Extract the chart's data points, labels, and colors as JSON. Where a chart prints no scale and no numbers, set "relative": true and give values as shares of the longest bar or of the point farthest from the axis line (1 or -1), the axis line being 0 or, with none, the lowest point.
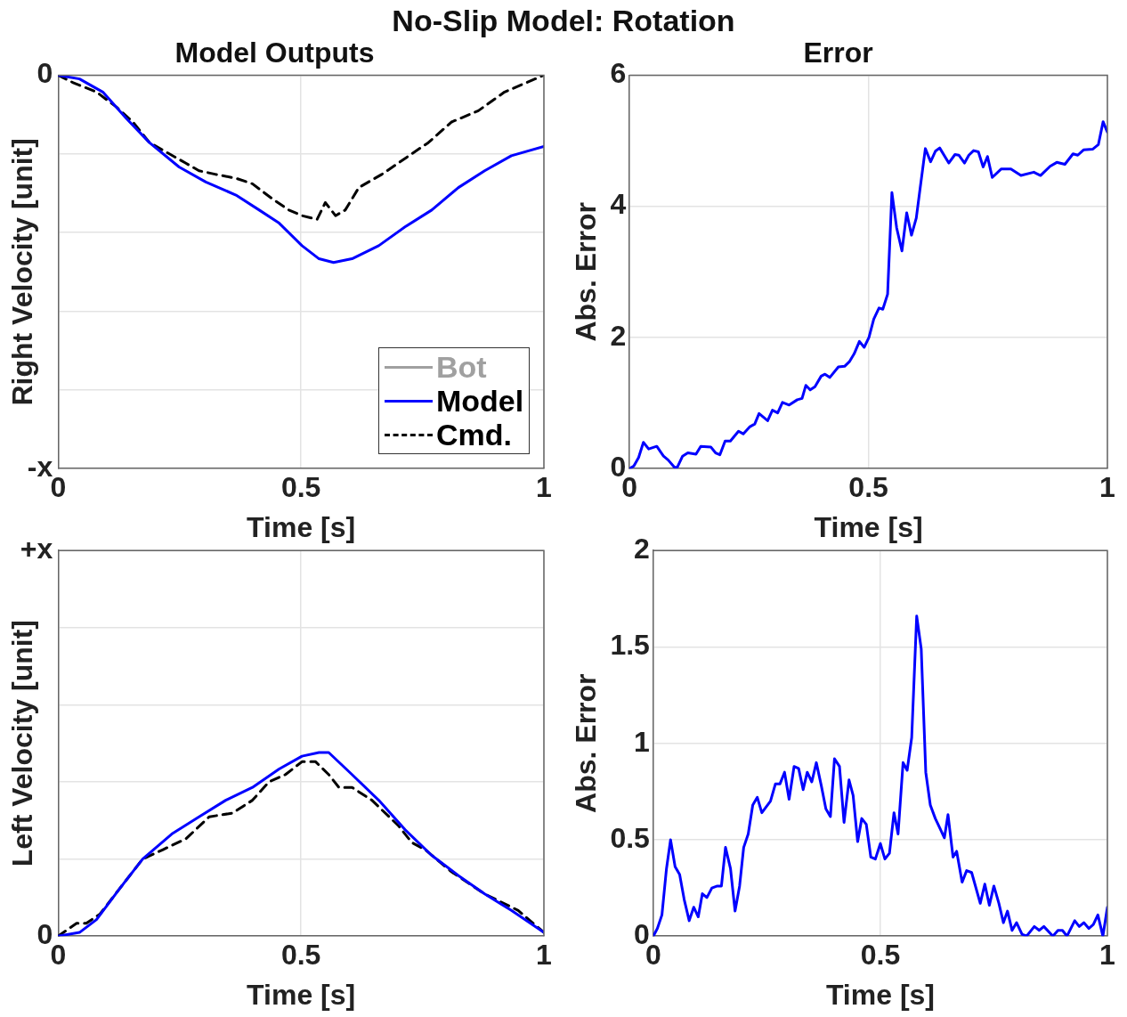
{
  "chart_data": [
    {
      "type": "line",
      "title": "No-Slip Model: Rotation",
      "subtitle": "Model Outputs",
      "annotations": [
        "0",
        "-x"
      ],
      "xlabel": "Time [s]",
      "ylabel": "Right Velocity [unit]",
      "xlim": [
        0,
        1
      ],
      "xticks": [
        0,
        0.5,
        1
      ],
      "relative": true,
      "grid": true,
      "legend": "bottom right",
      "marker": "none",
      "series": [
        {
          "name": "Bot",
          "color": "#a0a0a0",
          "line_style": "solid"
        },
        {
          "name": "Model",
          "color": "#0000ff",
          "line_style": "solid",
          "x": [
            0,
            0.044,
            0.092,
            0.14,
            0.188,
            0.249,
            0.304,
            0.366,
            0.414,
            0.455,
            0.502,
            0.537,
            0.567,
            0.605,
            0.66,
            0.714,
            0.769,
            0.824,
            0.878,
            0.933,
            1
          ],
          "values": [
            0,
            -0.02,
            -0.09,
            -0.23,
            -0.36,
            -0.49,
            -0.57,
            -0.64,
            -0.72,
            -0.79,
            -0.91,
            -0.98,
            -1,
            -0.98,
            -0.91,
            -0.81,
            -0.72,
            -0.6,
            -0.51,
            -0.43,
            -0.38
          ]
        },
        {
          "name": "Cmd.",
          "color": "#000000",
          "line_style": "dashed",
          "x": [
            0,
            0.031,
            0.079,
            0.12,
            0.154,
            0.188,
            0.229,
            0.263,
            0.29,
            0.325,
            0.366,
            0.4,
            0.441,
            0.475,
            0.502,
            0.533,
            0.55,
            0.571,
            0.591,
            0.619,
            0.666,
            0.728,
            0.762,
            0.81,
            0.865,
            0.919,
            1
          ],
          "values": [
            0,
            -0.04,
            -0.09,
            -0.17,
            -0.25,
            -0.36,
            -0.42,
            -0.47,
            -0.51,
            -0.53,
            -0.55,
            -0.58,
            -0.66,
            -0.72,
            -0.75,
            -0.77,
            -0.68,
            -0.75,
            -0.72,
            -0.6,
            -0.53,
            -0.42,
            -0.36,
            -0.25,
            -0.19,
            -0.09,
            0
          ]
        }
      ]
    },
    {
      "type": "line",
      "title": "Error",
      "xlabel": "Time [s]",
      "ylabel": "Abs. Error",
      "xlim": [
        0,
        1
      ],
      "xticks": [
        0,
        0.5,
        1
      ],
      "ylim": [
        0,
        6
      ],
      "yticks": [
        0,
        2,
        4,
        6
      ],
      "grid": true,
      "marker": "none",
      "series": [
        {
          "color": "#0000ff",
          "line_style": "solid",
          "x": [
            0,
            0.009,
            0.019,
            0.029,
            0.04,
            0.057,
            0.071,
            0.081,
            0.094,
            0.1,
            0.111,
            0.122,
            0.139,
            0.149,
            0.17,
            0.18,
            0.189,
            0.2,
            0.211,
            0.228,
            0.238,
            0.252,
            0.262,
            0.271,
            0.289,
            0.299,
            0.31,
            0.32,
            0.334,
            0.351,
            0.361,
            0.369,
            0.378,
            0.388,
            0.401,
            0.409,
            0.419,
            0.437,
            0.45,
            0.46,
            0.47,
            0.481,
            0.491,
            0.501,
            0.511,
            0.522,
            0.53,
            0.54,
            0.549,
            0.559,
            0.57,
            0.58,
            0.59,
            0.6,
            0.608,
            0.619,
            0.63,
            0.64,
            0.649,
            0.668,
            0.681,
            0.689,
            0.701,
            0.71,
            0.72,
            0.73,
            0.74,
            0.749,
            0.759,
            0.778,
            0.798,
            0.819,
            0.846,
            0.86,
            0.88,
            0.894,
            0.911,
            0.928,
            0.938,
            0.95,
            0.969,
            0.981,
            0.991,
            1
          ],
          "values": [
            0,
            0.04,
            0.17,
            0.4,
            0.3,
            0.34,
            0.19,
            0.13,
            0.02,
            0.02,
            0.19,
            0.24,
            0.22,
            0.34,
            0.33,
            0.24,
            0.21,
            0.42,
            0.42,
            0.57,
            0.53,
            0.64,
            0.68,
            0.84,
            0.73,
            0.89,
            0.85,
            1.01,
            0.97,
            1.05,
            1.07,
            1.27,
            1.2,
            1.25,
            1.41,
            1.44,
            1.39,
            1.55,
            1.56,
            1.63,
            1.75,
            1.94,
            1.85,
            2,
            2.28,
            2.45,
            2.43,
            2.66,
            4.21,
            3.67,
            3.32,
            3.9,
            3.56,
            3.82,
            4.27,
            4.88,
            4.68,
            4.84,
            4.89,
            4.66,
            4.79,
            4.78,
            4.66,
            4.78,
            4.85,
            4.83,
            4.6,
            4.76,
            4.44,
            4.57,
            4.57,
            4.47,
            4.52,
            4.47,
            4.61,
            4.67,
            4.64,
            4.8,
            4.78,
            4.86,
            4.87,
            4.94,
            5.29,
            5.13
          ]
        }
      ]
    },
    {
      "type": "line",
      "annotations": [
        "+x",
        "0"
      ],
      "xlabel": "Time [s]",
      "ylabel": "Left Velocity [unit]",
      "xlim": [
        0,
        1
      ],
      "xticks": [
        0,
        0.5,
        1
      ],
      "relative": true,
      "grid": true,
      "marker": "none",
      "series": [
        {
          "color": "#0000ff",
          "line_style": "solid",
          "x": [
            0,
            0.044,
            0.079,
            0.127,
            0.174,
            0.236,
            0.29,
            0.345,
            0.4,
            0.455,
            0.502,
            0.537,
            0.557,
            0.605,
            0.66,
            0.714,
            0.769,
            0.824,
            0.878,
            0.933,
            1
          ],
          "values": [
            0,
            0.02,
            0.09,
            0.26,
            0.42,
            0.56,
            0.65,
            0.74,
            0.81,
            0.91,
            0.98,
            1,
            1,
            0.88,
            0.74,
            0.58,
            0.44,
            0.33,
            0.23,
            0.14,
            0.02
          ]
        },
        {
          "color": "#000000",
          "line_style": "dashed",
          "x": [
            0,
            0.038,
            0.058,
            0.086,
            0.127,
            0.174,
            0.215,
            0.263,
            0.311,
            0.359,
            0.4,
            0.434,
            0.468,
            0.502,
            0.53,
            0.557,
            0.578,
            0.605,
            0.646,
            0.701,
            0.728,
            0.756,
            0.81,
            0.878,
            0.947,
            1
          ],
          "values": [
            0,
            0.07,
            0.07,
            0.12,
            0.26,
            0.42,
            0.47,
            0.53,
            0.65,
            0.67,
            0.74,
            0.84,
            0.88,
            0.95,
            0.95,
            0.88,
            0.81,
            0.81,
            0.74,
            0.6,
            0.51,
            0.47,
            0.35,
            0.23,
            0.14,
            0.02
          ]
        }
      ]
    },
    {
      "type": "line",
      "xlabel": "Time [s]",
      "ylabel": "Abs. Error",
      "xlim": [
        0,
        1
      ],
      "xticks": [
        0,
        0.5,
        1
      ],
      "ylim": [
        0,
        2
      ],
      "yticks": [
        0,
        0.5,
        1,
        1.5,
        2
      ],
      "grid": true,
      "marker": "none",
      "series": [
        {
          "color": "#0000ff",
          "line_style": "solid",
          "x": [
            0,
            0.009,
            0.019,
            0.029,
            0.038,
            0.048,
            0.058,
            0.068,
            0.079,
            0.089,
            0.099,
            0.108,
            0.118,
            0.129,
            0.141,
            0.15,
            0.159,
            0.17,
            0.18,
            0.19,
            0.199,
            0.209,
            0.219,
            0.229,
            0.239,
            0.258,
            0.269,
            0.279,
            0.289,
            0.299,
            0.31,
            0.32,
            0.33,
            0.339,
            0.349,
            0.359,
            0.37,
            0.38,
            0.39,
            0.399,
            0.41,
            0.42,
            0.431,
            0.44,
            0.45,
            0.459,
            0.469,
            0.479,
            0.489,
            0.5,
            0.51,
            0.52,
            0.53,
            0.539,
            0.55,
            0.559,
            0.569,
            0.58,
            0.59,
            0.6,
            0.61,
            0.621,
            0.631,
            0.641,
            0.649,
            0.66,
            0.668,
            0.68,
            0.69,
            0.701,
            0.72,
            0.73,
            0.74,
            0.75,
            0.761,
            0.771,
            0.78,
            0.79,
            0.8,
            0.812,
            0.822,
            0.839,
            0.85,
            0.86,
            0.88,
            0.891,
            0.901,
            0.911,
            0.928,
            0.938,
            0.948,
            0.959,
            0.969,
            0.979,
            0.99,
            1
          ],
          "values": [
            0,
            0.04,
            0.11,
            0.35,
            0.5,
            0.36,
            0.32,
            0.19,
            0.08,
            0.15,
            0.1,
            0.22,
            0.2,
            0.25,
            0.26,
            0.26,
            0.46,
            0.35,
            0.13,
            0.26,
            0.46,
            0.53,
            0.68,
            0.72,
            0.64,
            0.7,
            0.79,
            0.79,
            0.85,
            0.71,
            0.88,
            0.87,
            0.76,
            0.85,
            0.8,
            0.9,
            0.78,
            0.66,
            0.62,
            0.92,
            0.88,
            0.59,
            0.81,
            0.73,
            0.49,
            0.61,
            0.58,
            0.41,
            0.4,
            0.48,
            0.4,
            0.43,
            0.64,
            0.53,
            0.9,
            0.86,
            1.03,
            1.66,
            1.49,
            0.85,
            0.68,
            0.61,
            0.56,
            0.51,
            0.63,
            0.41,
            0.44,
            0.28,
            0.34,
            0.33,
            0.17,
            0.27,
            0.16,
            0.26,
            0.17,
            0.07,
            0.13,
            0.03,
            0.07,
            0.01,
            0,
            0.05,
            0.03,
            0.05,
            0,
            0.03,
            0.03,
            0,
            0.08,
            0.05,
            0.07,
            0.04,
            0.06,
            0.11,
            0,
            0.15
          ]
        }
      ]
    }
  ]
}
